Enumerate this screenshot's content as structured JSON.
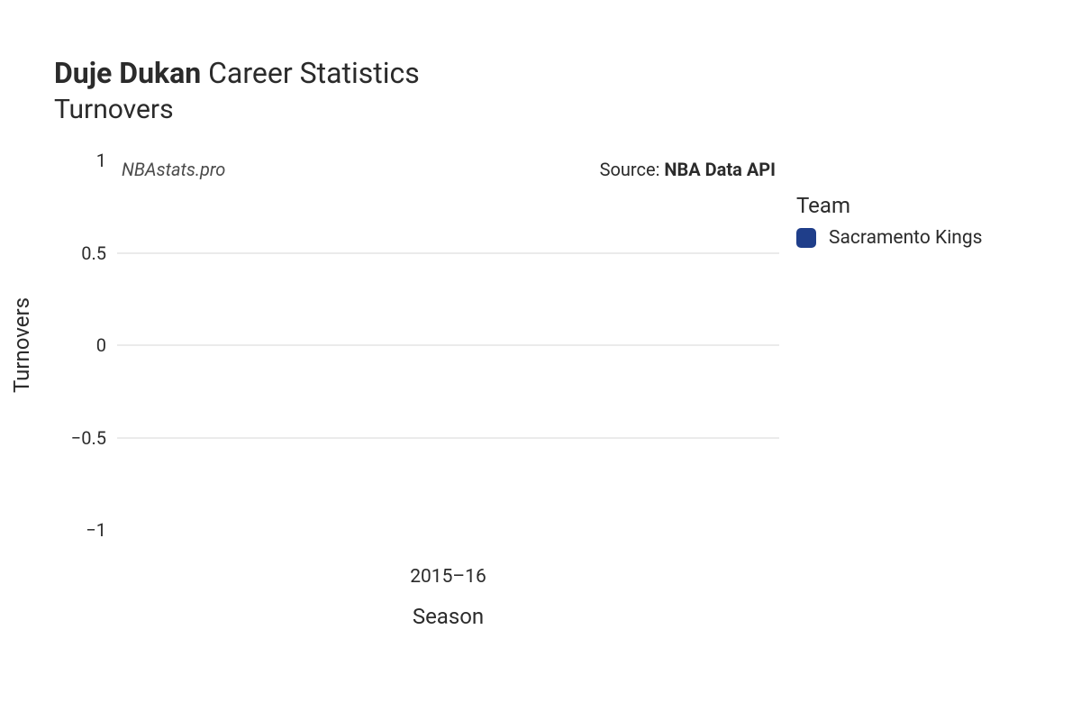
{
  "title": {
    "player_name": "Duje Dukan",
    "suffix": "Career Statistics",
    "subtitle": "Turnovers"
  },
  "chart": {
    "type": "bar",
    "watermark": "NBAstats.pro",
    "source_prefix": "Source: ",
    "source_name": "NBA Data API",
    "x": {
      "label": "Season",
      "categories": [
        "2015–16"
      ]
    },
    "y": {
      "label": "Turnovers",
      "lim": [
        -1,
        1
      ],
      "ticks": [
        {
          "v": -1,
          "label": "−1"
        },
        {
          "v": -0.5,
          "label": "−0.5"
        },
        {
          "v": 0,
          "label": "0"
        },
        {
          "v": 0.5,
          "label": "0.5"
        },
        {
          "v": 1,
          "label": "1"
        }
      ],
      "gridlines": [
        -0.5,
        0,
        0.5
      ],
      "grid_color": "#ebebeb"
    },
    "series": [
      {
        "team": "Sacramento Kings",
        "color": "#1f3e8a",
        "values": [
          0
        ]
      }
    ],
    "background_color": "#ffffff",
    "title_fontsize_pt": 24,
    "subtitle_fontsize_pt": 22,
    "tick_fontsize_pt": 15,
    "axis_label_fontsize_pt": 18,
    "legend_title_fontsize_pt": 18,
    "legend_label_fontsize_pt": 16
  },
  "legend": {
    "title": "Team"
  }
}
